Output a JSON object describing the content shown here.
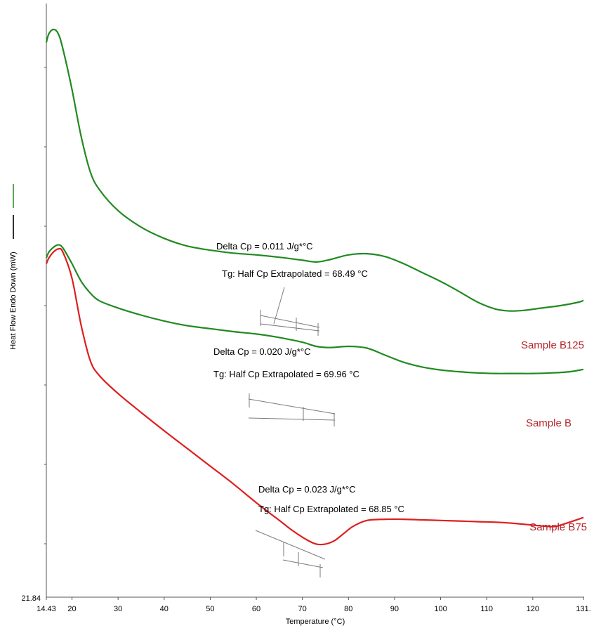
{
  "chart_data": {
    "type": "line",
    "title": "",
    "xlabel": "Temperature (°C)",
    "ylabel": "Heat Flow Endo Down (mW)",
    "xlim": [
      14.43,
      131
    ],
    "x_tick_labels": [
      "14.43",
      "20",
      "30",
      "40",
      "50",
      "60",
      "70",
      "80",
      "90",
      "100",
      "110",
      "120",
      "131."
    ],
    "x_tick_values": [
      14.43,
      20,
      30,
      40,
      50,
      60,
      70,
      80,
      90,
      100,
      110,
      120,
      131
    ],
    "y_bottom_label": "21.84",
    "grid": false,
    "legend_marks": [
      "#2f8f2f",
      "#000000"
    ],
    "series": [
      {
        "name": "Sample B125",
        "color": "#218a21",
        "x": [
          14.43,
          15,
          16,
          17,
          18,
          20,
          22,
          24,
          26,
          30,
          35,
          40,
          45,
          50,
          55,
          60,
          65,
          70,
          73,
          76,
          80,
          84,
          88,
          92,
          96,
          100,
          104,
          108,
          112,
          115,
          118,
          122,
          126,
          130,
          131
        ],
        "y": [
          0.94,
          0.955,
          0.962,
          0.955,
          0.93,
          0.86,
          0.78,
          0.72,
          0.69,
          0.655,
          0.627,
          0.608,
          0.595,
          0.588,
          0.583,
          0.58,
          0.576,
          0.571,
          0.568,
          0.572,
          0.58,
          0.582,
          0.577,
          0.565,
          0.55,
          0.535,
          0.518,
          0.5,
          0.488,
          0.485,
          0.486,
          0.49,
          0.494,
          0.5,
          0.503
        ]
      },
      {
        "name": "Sample B",
        "color": "#218a21",
        "x": [
          14.43,
          15,
          16,
          17,
          18,
          20,
          22,
          24,
          26,
          30,
          35,
          40,
          45,
          50,
          55,
          60,
          65,
          70,
          73,
          76,
          80,
          84,
          88,
          92,
          96,
          100,
          104,
          108,
          112,
          116,
          120,
          124,
          128,
          131
        ],
        "y": [
          0.575,
          0.585,
          0.593,
          0.597,
          0.592,
          0.565,
          0.535,
          0.515,
          0.502,
          0.49,
          0.478,
          0.468,
          0.46,
          0.455,
          0.45,
          0.446,
          0.44,
          0.432,
          0.425,
          0.423,
          0.425,
          0.422,
          0.41,
          0.398,
          0.39,
          0.385,
          0.382,
          0.38,
          0.379,
          0.379,
          0.379,
          0.38,
          0.382,
          0.386
        ]
      },
      {
        "name": "Sample B75",
        "color": "#dd1f1f",
        "x": [
          14.43,
          15,
          16,
          17,
          18,
          20,
          22,
          24,
          26,
          30,
          35,
          40,
          45,
          50,
          55,
          60,
          65,
          68,
          71,
          73,
          75,
          77,
          79,
          81,
          84,
          88,
          92,
          96,
          100,
          104,
          108,
          112,
          116,
          120,
          123,
          125,
          128,
          131
        ],
        "y": [
          0.565,
          0.575,
          0.585,
          0.59,
          0.585,
          0.54,
          0.46,
          0.4,
          0.375,
          0.345,
          0.313,
          0.282,
          0.252,
          0.222,
          0.192,
          0.16,
          0.13,
          0.112,
          0.097,
          0.09,
          0.09,
          0.096,
          0.108,
          0.12,
          0.13,
          0.132,
          0.132,
          0.131,
          0.13,
          0.129,
          0.128,
          0.127,
          0.125,
          0.122,
          0.12,
          0.12,
          0.127,
          0.135
        ]
      }
    ],
    "annotations": [
      {
        "delta_cp": "Delta Cp = 0.011 J/g*°C",
        "tg": "Tg: Half Cp Extrapolated = 68.49 °C",
        "label": "Sample B125"
      },
      {
        "delta_cp": "Delta Cp = 0.020 J/g*°C",
        "tg": "Tg: Half Cp Extrapolated = 69.96 °C",
        "label": "Sample B"
      },
      {
        "delta_cp": "Delta Cp = 0.023 J/g*°C",
        "tg": "Tg: Half Cp Extrapolated = 68.85 °C",
        "label": "Sample B75"
      }
    ]
  }
}
